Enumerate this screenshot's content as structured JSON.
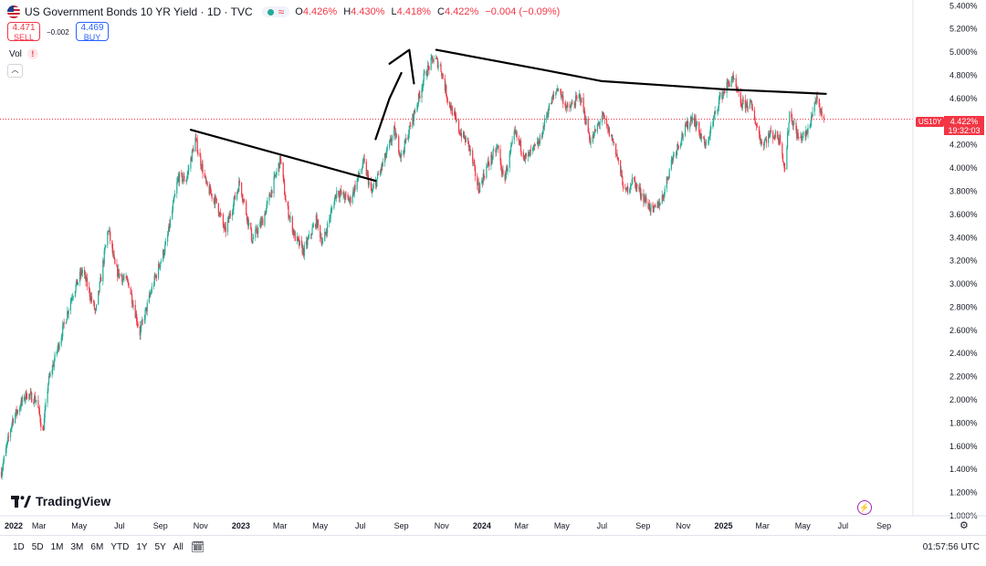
{
  "header": {
    "title": "US Government Bonds 10 YR Yield · 1D · TVC",
    "o_label": "O",
    "o": "4.426%",
    "h_label": "H",
    "h": "4.430%",
    "l_label": "L",
    "l": "4.418%",
    "c_label": "C",
    "c": "4.422%",
    "change": "−0.004 (−0.09%)"
  },
  "trade": {
    "sell_price": "4.471",
    "sell_label": "SELL",
    "buy_price": "4.469",
    "buy_label": "BUY",
    "spread": "−0.002"
  },
  "volume": {
    "label": "Vol",
    "warn": "!"
  },
  "symbol_tag": "US10Y",
  "last_price": {
    "value": "4.422%",
    "countdown": "19:32:03"
  },
  "branding": "TradingView",
  "bottom_bar": {
    "ranges": [
      "1D",
      "5D",
      "1M",
      "3M",
      "6M",
      "YTD",
      "1Y",
      "5Y",
      "All"
    ],
    "time": "01:57:56 UTC"
  },
  "colors": {
    "up": "#22ab94",
    "down": "#f23645",
    "accent": "#2962ff",
    "trendline": "#000000"
  },
  "icons": [
    "us-flag-icon",
    "chevron-up-icon",
    "calendar-range-icon",
    "gear-icon",
    "lightning-icon",
    "tradingview-logo-icon"
  ],
  "chart_data": {
    "type": "candlestick",
    "title": "US Government Bonds 10 YR Yield",
    "timeframe": "1D",
    "y_axis": {
      "position": "right",
      "ylim": [
        1.0,
        5.45
      ],
      "ticks": [
        1.0,
        1.2,
        1.4,
        1.6,
        1.8,
        2.0,
        2.2,
        2.4,
        2.6,
        2.8,
        3.0,
        3.2,
        3.4,
        3.6,
        3.8,
        4.0,
        4.2,
        4.4,
        4.6,
        4.8,
        5.0,
        5.2,
        5.4
      ],
      "tick_labels": [
        "1.000%",
        "1.200%",
        "1.400%",
        "1.600%",
        "1.800%",
        "2.000%",
        "2.200%",
        "2.400%",
        "2.600%",
        "2.800%",
        "3.000%",
        "3.200%",
        "3.400%",
        "3.600%",
        "3.800%",
        "4.000%",
        "4.200%",
        "4.400%",
        "4.600%",
        "4.800%",
        "5.000%",
        "5.200%",
        "5.400%"
      ]
    },
    "x_axis": {
      "range": [
        "2022-01-01",
        "2025-10-15"
      ],
      "ticks": [
        {
          "date": "2022-01-01",
          "label": "2022",
          "bold": true
        },
        {
          "date": "2022-03-01",
          "label": "Mar"
        },
        {
          "date": "2022-05-01",
          "label": "May"
        },
        {
          "date": "2022-07-01",
          "label": "Jul"
        },
        {
          "date": "2022-09-01",
          "label": "Sep"
        },
        {
          "date": "2022-11-01",
          "label": "Nov"
        },
        {
          "date": "2023-01-01",
          "label": "2023",
          "bold": true
        },
        {
          "date": "2023-03-01",
          "label": "Mar"
        },
        {
          "date": "2023-05-01",
          "label": "May"
        },
        {
          "date": "2023-07-01",
          "label": "Jul"
        },
        {
          "date": "2023-09-01",
          "label": "Sep"
        },
        {
          "date": "2023-11-01",
          "label": "Nov"
        },
        {
          "date": "2024-01-01",
          "label": "2024",
          "bold": true
        },
        {
          "date": "2024-03-01",
          "label": "Mar"
        },
        {
          "date": "2024-05-01",
          "label": "May"
        },
        {
          "date": "2024-07-01",
          "label": "Jul"
        },
        {
          "date": "2024-09-01",
          "label": "Sep"
        },
        {
          "date": "2024-11-01",
          "label": "Nov"
        },
        {
          "date": "2025-01-01",
          "label": "2025",
          "bold": true
        },
        {
          "date": "2025-03-01",
          "label": "Mar"
        },
        {
          "date": "2025-05-01",
          "label": "May"
        },
        {
          "date": "2025-07-01",
          "label": "Jul"
        },
        {
          "date": "2025-09-01",
          "label": "Sep"
        }
      ]
    },
    "last_value": 4.422,
    "price_path": [
      [
        "2022-01-03",
        1.38
      ],
      [
        "2022-01-20",
        1.83
      ],
      [
        "2022-02-10",
        2.05
      ],
      [
        "2022-02-25",
        2.0
      ],
      [
        "2022-03-07",
        1.72
      ],
      [
        "2022-03-15",
        2.15
      ],
      [
        "2022-04-01",
        2.5
      ],
      [
        "2022-04-20",
        2.9
      ],
      [
        "2022-05-06",
        3.12
      ],
      [
        "2022-05-26",
        2.75
      ],
      [
        "2022-06-14",
        3.48
      ],
      [
        "2022-06-25",
        3.12
      ],
      [
        "2022-07-15",
        3.0
      ],
      [
        "2022-08-01",
        2.58
      ],
      [
        "2022-08-20",
        2.98
      ],
      [
        "2022-09-10",
        3.35
      ],
      [
        "2022-09-28",
        3.92
      ],
      [
        "2022-10-10",
        3.9
      ],
      [
        "2022-10-24",
        4.25
      ],
      [
        "2022-11-10",
        3.84
      ],
      [
        "2022-11-25",
        3.7
      ],
      [
        "2022-12-08",
        3.45
      ],
      [
        "2022-12-30",
        3.88
      ],
      [
        "2023-01-18",
        3.38
      ],
      [
        "2023-02-03",
        3.55
      ],
      [
        "2023-03-02",
        4.08
      ],
      [
        "2023-03-10",
        3.7
      ],
      [
        "2023-03-24",
        3.4
      ],
      [
        "2023-04-06",
        3.28
      ],
      [
        "2023-04-25",
        3.55
      ],
      [
        "2023-05-05",
        3.35
      ],
      [
        "2023-05-26",
        3.8
      ],
      [
        "2023-06-15",
        3.72
      ],
      [
        "2023-07-06",
        4.05
      ],
      [
        "2023-07-18",
        3.78
      ],
      [
        "2023-08-05",
        4.05
      ],
      [
        "2023-08-21",
        4.32
      ],
      [
        "2023-09-01",
        4.1
      ],
      [
        "2023-09-28",
        4.62
      ],
      [
        "2023-10-06",
        4.8
      ],
      [
        "2023-10-20",
        4.95
      ],
      [
        "2023-10-30",
        4.88
      ],
      [
        "2023-11-10",
        4.6
      ],
      [
        "2023-11-28",
        4.32
      ],
      [
        "2023-12-12",
        4.2
      ],
      [
        "2023-12-27",
        3.82
      ],
      [
        "2024-01-10",
        4.03
      ],
      [
        "2024-01-25",
        4.18
      ],
      [
        "2024-02-03",
        3.88
      ],
      [
        "2024-02-20",
        4.3
      ],
      [
        "2024-03-08",
        4.08
      ],
      [
        "2024-03-28",
        4.22
      ],
      [
        "2024-04-10",
        4.5
      ],
      [
        "2024-04-25",
        4.7
      ],
      [
        "2024-05-10",
        4.5
      ],
      [
        "2024-05-29",
        4.62
      ],
      [
        "2024-06-14",
        4.22
      ],
      [
        "2024-07-01",
        4.45
      ],
      [
        "2024-07-20",
        4.2
      ],
      [
        "2024-08-05",
        3.78
      ],
      [
        "2024-08-16",
        3.9
      ],
      [
        "2024-09-16",
        3.62
      ],
      [
        "2024-10-01",
        3.75
      ],
      [
        "2024-10-15",
        4.08
      ],
      [
        "2024-10-31",
        4.29
      ],
      [
        "2024-11-15",
        4.45
      ],
      [
        "2024-12-05",
        4.18
      ],
      [
        "2024-12-26",
        4.6
      ],
      [
        "2025-01-14",
        4.78
      ],
      [
        "2025-01-28",
        4.55
      ],
      [
        "2025-02-11",
        4.55
      ],
      [
        "2025-02-28",
        4.21
      ],
      [
        "2025-03-14",
        4.3
      ],
      [
        "2025-03-28",
        4.25
      ],
      [
        "2025-04-04",
        3.98
      ],
      [
        "2025-04-11",
        4.48
      ],
      [
        "2025-04-25",
        4.25
      ],
      [
        "2025-05-08",
        4.3
      ],
      [
        "2025-05-21",
        4.6
      ],
      [
        "2025-05-27",
        4.48
      ],
      [
        "2025-06-02",
        4.422
      ]
    ],
    "trendlines": [
      {
        "points": [
          [
            "2022-10-17",
            4.33
          ],
          [
            "2023-07-24",
            3.89
          ]
        ]
      },
      {
        "points": [
          [
            "2023-07-24",
            4.25
          ],
          [
            "2023-08-14",
            4.6
          ],
          [
            "2023-09-01",
            4.82
          ]
        ]
      },
      {
        "points": [
          [
            "2023-08-14",
            4.9
          ],
          [
            "2023-09-13",
            5.02
          ],
          [
            "2023-09-20",
            4.73
          ]
        ]
      },
      {
        "points": [
          [
            "2023-10-24",
            5.02
          ],
          [
            "2024-04-01",
            4.85
          ],
          [
            "2024-07-01",
            4.75
          ],
          [
            "2025-01-01",
            4.68
          ],
          [
            "2025-06-05",
            4.64
          ]
        ]
      }
    ]
  }
}
